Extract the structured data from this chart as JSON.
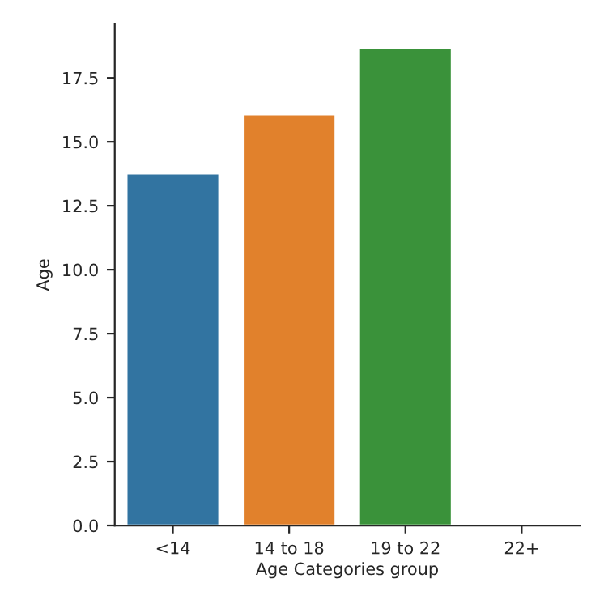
{
  "chart_data": {
    "type": "bar",
    "xlabel": "Age Categories group",
    "ylabel": "Age",
    "categories": [
      "<14",
      "14 to 18",
      "19 to 22",
      "22+"
    ],
    "values": [
      13.77,
      16.08,
      18.68,
      null
    ],
    "colors": [
      "#3274a1",
      "#e1812c",
      "#3a923a",
      null
    ],
    "ylim": [
      0,
      19.6
    ],
    "yticks": [
      {
        "value": 0,
        "label": "0.0"
      },
      {
        "value": 2.5,
        "label": "2.5"
      },
      {
        "value": 5,
        "label": "5.0"
      },
      {
        "value": 7.5,
        "label": "7.5"
      },
      {
        "value": 10,
        "label": "10.0"
      },
      {
        "value": 12.5,
        "label": "12.5"
      },
      {
        "value": 15,
        "label": "15.0"
      },
      {
        "value": 17.5,
        "label": "17.5"
      }
    ],
    "grid": false
  }
}
